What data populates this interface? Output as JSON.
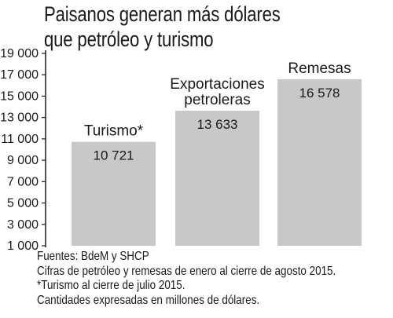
{
  "chart_data": {
    "type": "bar",
    "title": "Paisanos generan más dólares que petróleo y turismo",
    "title_lines": [
      "Paisanos generan más dólares",
      "que petróleo y turismo"
    ],
    "categories": [
      {
        "label_lines": [
          "Turismo*"
        ]
      },
      {
        "label_lines": [
          "Exportaciones",
          "petroleras"
        ]
      },
      {
        "label_lines": [
          "Remesas"
        ]
      }
    ],
    "values": [
      10721,
      13633,
      16578
    ],
    "value_labels": [
      "10 721",
      "13 633",
      "16 578"
    ],
    "y_ticks": [
      1000,
      3000,
      5000,
      7000,
      9000,
      11000,
      13000,
      15000,
      17000,
      19000
    ],
    "y_tick_labels": [
      "1 000",
      "3 000",
      "5 000",
      "7 000",
      "9 000",
      "11 000",
      "13 000",
      "15 000",
      "17 000",
      "19 000"
    ],
    "ylim": [
      1000,
      19000
    ],
    "grid": false,
    "bar_color": "#c8c8c8",
    "axis_color": "#1a1a1a"
  },
  "footer": {
    "source": "Fuentes: BdeM y SHCP",
    "note1": "Cifras de petróleo y remesas de enero al cierre de agosto 2015.",
    "note2": "*Turismo al cierre de julio 2015.",
    "note3": "Cantidades expresadas en millones de dólares."
  }
}
